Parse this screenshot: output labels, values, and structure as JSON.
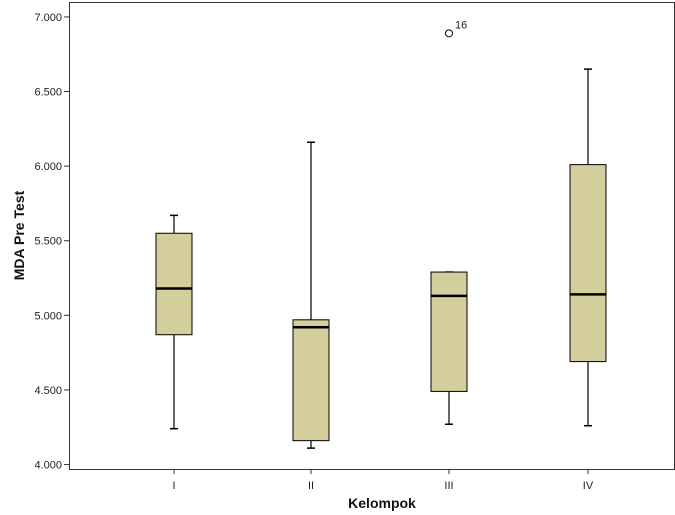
{
  "chart_data": {
    "type": "boxplot",
    "xlabel": "Kelompok",
    "ylabel": "MDA Pre Test",
    "categories": [
      "I",
      "II",
      "III",
      "IV"
    ],
    "ylim": [
      3.97,
      7.1
    ],
    "yticks": [
      4.0,
      4.5,
      5.0,
      5.5,
      6.0,
      6.5,
      7.0
    ],
    "ytick_labels": [
      "4.000",
      "4.500",
      "5.000",
      "5.500",
      "6.000",
      "6.500",
      "7.000"
    ],
    "boxes": [
      {
        "category": "I",
        "whisker_low": 4.24,
        "q1": 4.87,
        "median": 5.18,
        "q3": 5.55,
        "whisker_high": 5.67
      },
      {
        "category": "II",
        "whisker_low": 4.11,
        "q1": 4.16,
        "median": 4.92,
        "q3": 4.97,
        "whisker_high": 6.16
      },
      {
        "category": "III",
        "whisker_low": 4.27,
        "q1": 4.49,
        "median": 5.13,
        "q3": 5.29,
        "whisker_high": 5.29
      },
      {
        "category": "IV",
        "whisker_low": 4.26,
        "q1": 4.69,
        "median": 5.14,
        "q3": 6.01,
        "whisker_high": 6.65
      }
    ],
    "outliers": [
      {
        "category": "III",
        "value": 6.89,
        "label": "16"
      }
    ],
    "box_color": "#d3ce9b",
    "grid": false,
    "legend": "none"
  }
}
